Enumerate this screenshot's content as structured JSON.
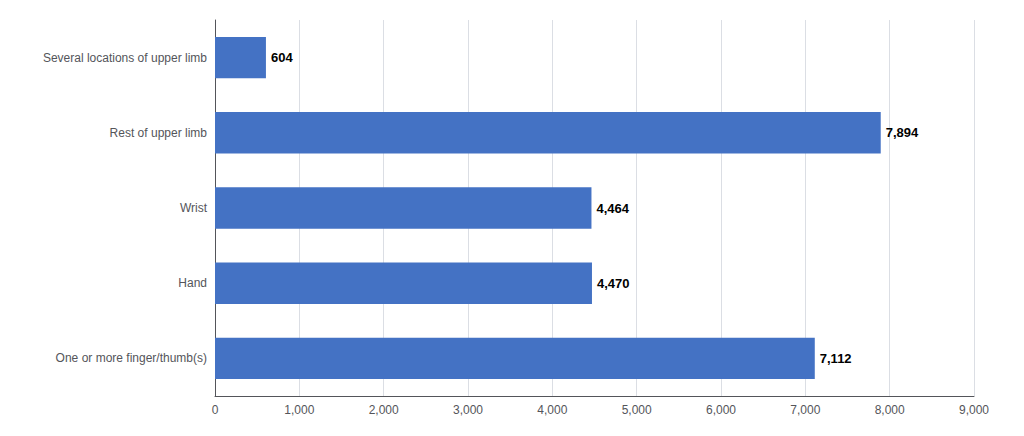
{
  "chart_data": {
    "type": "bar",
    "orientation": "horizontal",
    "categories": [
      "One or more finger/thumb(s)",
      "Hand",
      "Wrist",
      "Rest of upper limb",
      "Several locations of upper limb"
    ],
    "values": [
      7112,
      4470,
      4464,
      7894,
      604
    ],
    "value_labels": [
      "7,112",
      "4,470",
      "4,464",
      "7,894",
      "604"
    ],
    "color": "#4472C4",
    "xlim": [
      0,
      9000
    ],
    "xticks": [
      0,
      {
        "value": 1000,
        "label": "1,000"
      },
      {
        "value": 2000,
        "label": "2,000"
      },
      {
        "value": 3000,
        "label": "3,000"
      },
      {
        "value": 4000,
        "label": "4,000"
      },
      {
        "value": 5000,
        "label": "5,000"
      },
      {
        "value": 6000,
        "label": "6,000"
      },
      {
        "value": 7000,
        "label": "7,000"
      },
      {
        "value": 8000,
        "label": "8,000"
      },
      {
        "value": 9000,
        "label": "9,000"
      }
    ],
    "grid": true,
    "data_labels": true
  }
}
